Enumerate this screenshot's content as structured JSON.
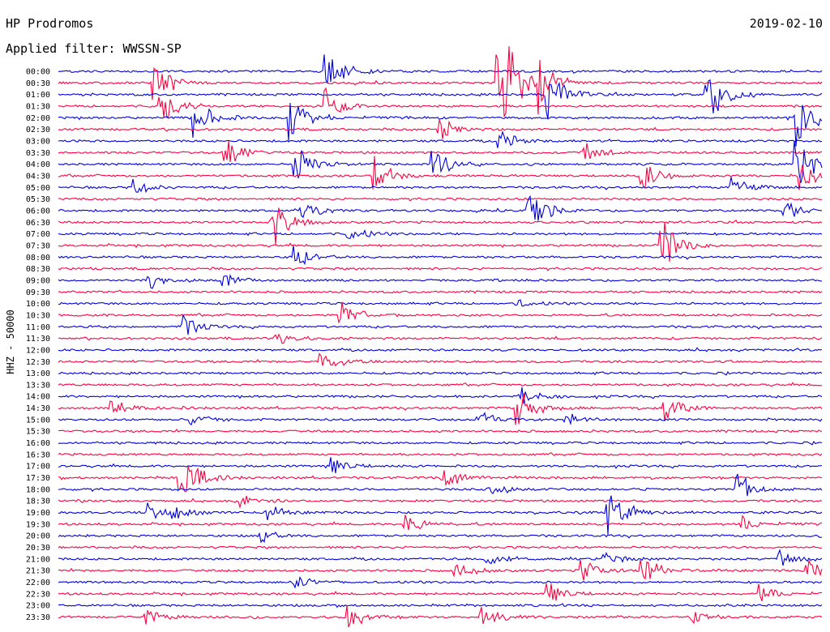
{
  "header": {
    "station": "HP Prodromos",
    "date": "2019-02-10",
    "filter": "Applied filter: WWSSN-SP"
  },
  "colors": {
    "even_hour_trace": "#0000e0",
    "half_hour_trace": "#ff0040",
    "background": "#ffffff",
    "text": "#000000"
  },
  "chart_data": {
    "type": "seismogram",
    "ylabel": "HHZ - 50000",
    "row_labels": [
      "00:00",
      "00:30",
      "01:00",
      "01:30",
      "02:00",
      "02:30",
      "03:00",
      "03:30",
      "04:00",
      "04:30",
      "05:00",
      "05:30",
      "06:00",
      "06:30",
      "07:00",
      "07:30",
      "08:00",
      "08:30",
      "09:00",
      "09:30",
      "10:00",
      "10:30",
      "11:00",
      "11:30",
      "12:00",
      "12:30",
      "13:00",
      "13:30",
      "14:00",
      "14:30",
      "15:00",
      "15:30",
      "16:00",
      "16:30",
      "17:00",
      "17:30",
      "18:00",
      "18:30",
      "19:00",
      "19:30",
      "20:00",
      "20:30",
      "21:00",
      "21:30",
      "22:00",
      "22:30",
      "23:00",
      "23:30"
    ],
    "trace_color_cycle": [
      "blue",
      "red"
    ],
    "events": [
      {
        "row": 0,
        "pos": 0.35,
        "amp": 3.2
      },
      {
        "row": 1,
        "pos": 0.125,
        "amp": 2.6
      },
      {
        "row": 1,
        "pos": 0.575,
        "amp": 9.0
      },
      {
        "row": 1,
        "pos": 0.63,
        "amp": 3.0
      },
      {
        "row": 2,
        "pos": 0.64,
        "amp": 3.0
      },
      {
        "row": 2,
        "pos": 0.85,
        "amp": 3.5
      },
      {
        "row": 3,
        "pos": 0.135,
        "amp": 2.2
      },
      {
        "row": 3,
        "pos": 0.35,
        "amp": 2.0
      },
      {
        "row": 4,
        "pos": 0.18,
        "amp": 2.8
      },
      {
        "row": 4,
        "pos": 0.305,
        "amp": 3.2
      },
      {
        "row": 4,
        "pos": 0.965,
        "amp": 4.5
      },
      {
        "row": 5,
        "pos": 0.5,
        "amp": 1.4
      },
      {
        "row": 6,
        "pos": 0.575,
        "amp": 1.4
      },
      {
        "row": 7,
        "pos": 0.22,
        "amp": 1.6
      },
      {
        "row": 7,
        "pos": 0.69,
        "amp": 1.3
      },
      {
        "row": 8,
        "pos": 0.31,
        "amp": 2.0
      },
      {
        "row": 8,
        "pos": 0.49,
        "amp": 2.0
      },
      {
        "row": 8,
        "pos": 0.965,
        "amp": 3.5
      },
      {
        "row": 9,
        "pos": 0.415,
        "amp": 1.9
      },
      {
        "row": 9,
        "pos": 0.765,
        "amp": 1.8
      },
      {
        "row": 9,
        "pos": 0.97,
        "amp": 2.0
      },
      {
        "row": 10,
        "pos": 0.1,
        "amp": 1.0
      },
      {
        "row": 10,
        "pos": 0.88,
        "amp": 1.4
      },
      {
        "row": 12,
        "pos": 0.32,
        "amp": 1.2
      },
      {
        "row": 12,
        "pos": 0.615,
        "amp": 2.8
      },
      {
        "row": 12,
        "pos": 0.95,
        "amp": 1.2
      },
      {
        "row": 13,
        "pos": 0.28,
        "amp": 2.8
      },
      {
        "row": 14,
        "pos": 0.38,
        "amp": 1.0
      },
      {
        "row": 15,
        "pos": 0.79,
        "amp": 3.0
      },
      {
        "row": 16,
        "pos": 0.31,
        "amp": 1.2
      },
      {
        "row": 18,
        "pos": 0.12,
        "amp": 1.2
      },
      {
        "row": 18,
        "pos": 0.215,
        "amp": 1.0
      },
      {
        "row": 20,
        "pos": 0.6,
        "amp": 0.5
      },
      {
        "row": 21,
        "pos": 0.37,
        "amp": 1.5
      },
      {
        "row": 22,
        "pos": 0.165,
        "amp": 1.1
      },
      {
        "row": 23,
        "pos": 0.285,
        "amp": 0.9
      },
      {
        "row": 25,
        "pos": 0.345,
        "amp": 1.5
      },
      {
        "row": 28,
        "pos": 0.605,
        "amp": 1.2
      },
      {
        "row": 29,
        "pos": 0.07,
        "amp": 1.0
      },
      {
        "row": 29,
        "pos": 0.6,
        "amp": 2.8
      },
      {
        "row": 29,
        "pos": 0.795,
        "amp": 1.8
      },
      {
        "row": 30,
        "pos": 0.175,
        "amp": 1.0
      },
      {
        "row": 30,
        "pos": 0.55,
        "amp": 1.0
      },
      {
        "row": 30,
        "pos": 0.665,
        "amp": 0.9
      },
      {
        "row": 34,
        "pos": 0.36,
        "amp": 1.0
      },
      {
        "row": 35,
        "pos": 0.16,
        "amp": 3.6
      },
      {
        "row": 35,
        "pos": 0.505,
        "amp": 1.4
      },
      {
        "row": 36,
        "pos": 0.565,
        "amp": 0.9
      },
      {
        "row": 36,
        "pos": 0.89,
        "amp": 1.8
      },
      {
        "row": 37,
        "pos": 0.24,
        "amp": 0.8
      },
      {
        "row": 38,
        "pos": 0.12,
        "amp": 1.0
      },
      {
        "row": 38,
        "pos": 0.15,
        "amp": 1.0
      },
      {
        "row": 38,
        "pos": 0.275,
        "amp": 0.8
      },
      {
        "row": 38,
        "pos": 0.72,
        "amp": 3.0
      },
      {
        "row": 39,
        "pos": 0.455,
        "amp": 1.3
      },
      {
        "row": 39,
        "pos": 0.895,
        "amp": 1.0
      },
      {
        "row": 40,
        "pos": 0.265,
        "amp": 0.7
      },
      {
        "row": 42,
        "pos": 0.56,
        "amp": 0.8
      },
      {
        "row": 42,
        "pos": 0.715,
        "amp": 0.9
      },
      {
        "row": 42,
        "pos": 0.945,
        "amp": 0.9
      },
      {
        "row": 43,
        "pos": 0.52,
        "amp": 1.3
      },
      {
        "row": 43,
        "pos": 0.685,
        "amp": 1.4
      },
      {
        "row": 43,
        "pos": 0.765,
        "amp": 1.6
      },
      {
        "row": 43,
        "pos": 0.98,
        "amp": 1.3
      },
      {
        "row": 44,
        "pos": 0.31,
        "amp": 0.7
      },
      {
        "row": 45,
        "pos": 0.64,
        "amp": 1.5
      },
      {
        "row": 45,
        "pos": 0.92,
        "amp": 1.0
      },
      {
        "row": 47,
        "pos": 0.115,
        "amp": 1.0
      },
      {
        "row": 47,
        "pos": 0.38,
        "amp": 1.4
      },
      {
        "row": 47,
        "pos": 0.555,
        "amp": 1.3
      },
      {
        "row": 47,
        "pos": 0.83,
        "amp": 0.8
      }
    ]
  }
}
